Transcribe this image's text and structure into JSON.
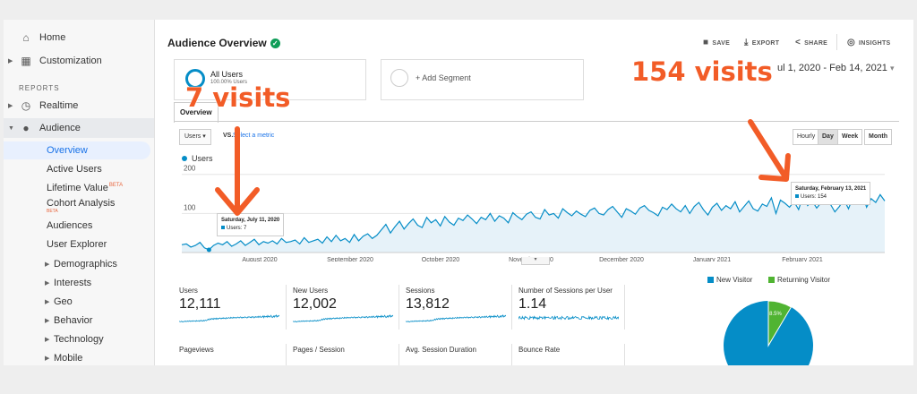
{
  "sidebar": {
    "home": "Home",
    "customization": "Customization",
    "reports_heading": "REPORTS",
    "realtime": "Realtime",
    "audience": "Audience",
    "items": [
      {
        "label": "Overview"
      },
      {
        "label": "Active Users"
      },
      {
        "label": "Lifetime Value",
        "badge": "BETA"
      },
      {
        "label": "Cohort Analysis",
        "badge": "BETA"
      },
      {
        "label": "Audiences"
      },
      {
        "label": "User Explorer"
      },
      {
        "label": "Demographics"
      },
      {
        "label": "Interests"
      },
      {
        "label": "Geo"
      },
      {
        "label": "Behavior"
      },
      {
        "label": "Technology"
      },
      {
        "label": "Mobile"
      }
    ]
  },
  "header": {
    "title": "Audience Overview",
    "save": "SAVE",
    "export": "EXPORT",
    "share": "SHARE",
    "insights": "INSIGHTS"
  },
  "segments": {
    "all_users": "All Users",
    "all_users_pct": "100.00% Users",
    "add_segment": "+ Add Segment"
  },
  "date_range": "ul 1, 2020 - Feb 14, 2021",
  "tabs": {
    "overview": "Overview"
  },
  "controls": {
    "metric": "Users",
    "vs": "VS.",
    "select_metric": "Select a metric",
    "periods": [
      "Hourly",
      "Day",
      "Week",
      "Month"
    ],
    "selected_period": "Day"
  },
  "chart_data": {
    "type": "line",
    "series": [
      {
        "name": "Users",
        "values": [
          20,
          22,
          14,
          18,
          26,
          12,
          7,
          18,
          24,
          20,
          28,
          16,
          22,
          30,
          18,
          26,
          34,
          20,
          28,
          24,
          30,
          22,
          36,
          26,
          28,
          32,
          22,
          38,
          26,
          30,
          34,
          24,
          40,
          28,
          44,
          30,
          36,
          26,
          46,
          30,
          42,
          48,
          36,
          44,
          58,
          72,
          50,
          66,
          80,
          60,
          74,
          86,
          70,
          64,
          90,
          76,
          84,
          68,
          92,
          78,
          70,
          88,
          82,
          96,
          86,
          74,
          90,
          84,
          100,
          80,
          94,
          88,
          76,
          102,
          92,
          84,
          98,
          104,
          90,
          86,
          110,
          96,
          100,
          88,
          112,
          102,
          94,
          106,
          98,
          92,
          108,
          114,
          100,
          96,
          110,
          118,
          104,
          90,
          112,
          106,
          98,
          114,
          120,
          108,
          102,
          94,
          116,
          110,
          124,
          112,
          104,
          120,
          100,
          118,
          128,
          110,
          96,
          116,
          126,
          108,
          120,
          112,
          130,
          104,
          118,
          132,
          112,
          106,
          124,
          118,
          140,
          100,
          134,
          126,
          116,
          130,
          110,
          146,
          120,
          132,
          114,
          128,
          150,
          124,
          104,
          118,
          136,
          112,
          142,
          130,
          154,
          116,
          138,
          128,
          148,
          132
        ]
      }
    ],
    "x_ticks": [
      "August 2020",
      "September 2020",
      "October 2020",
      "November 2020",
      "December 2020",
      "January 2021",
      "February 2021"
    ],
    "y_ticks": [
      "200",
      "100"
    ],
    "ylim": [
      0,
      220
    ],
    "tooltips": [
      {
        "title": "Saturday, July 11, 2020",
        "text": "Users: 7"
      },
      {
        "title": "Saturday, February 13, 2021",
        "text": "Users: 154"
      }
    ]
  },
  "stats": [
    {
      "label": "Users",
      "value": "12,111"
    },
    {
      "label": "New Users",
      "value": "12,002"
    },
    {
      "label": "Sessions",
      "value": "13,812"
    },
    {
      "label": "Number of Sessions per User",
      "value": "1.14"
    },
    {
      "label": "Pageviews",
      "value": ""
    },
    {
      "label": "Pages / Session",
      "value": ""
    },
    {
      "label": "Avg. Session Duration",
      "value": ""
    },
    {
      "label": "Bounce Rate",
      "value": ""
    }
  ],
  "pie": {
    "legend": [
      "New Visitor",
      "Returning Visitor"
    ],
    "colors": [
      "#058dc7",
      "#50b432"
    ],
    "returning_label": "8.5%",
    "returning_fraction": 0.085
  },
  "annotations": {
    "left": "7 visits",
    "right": "154 visits",
    "color": "#f25c27"
  }
}
